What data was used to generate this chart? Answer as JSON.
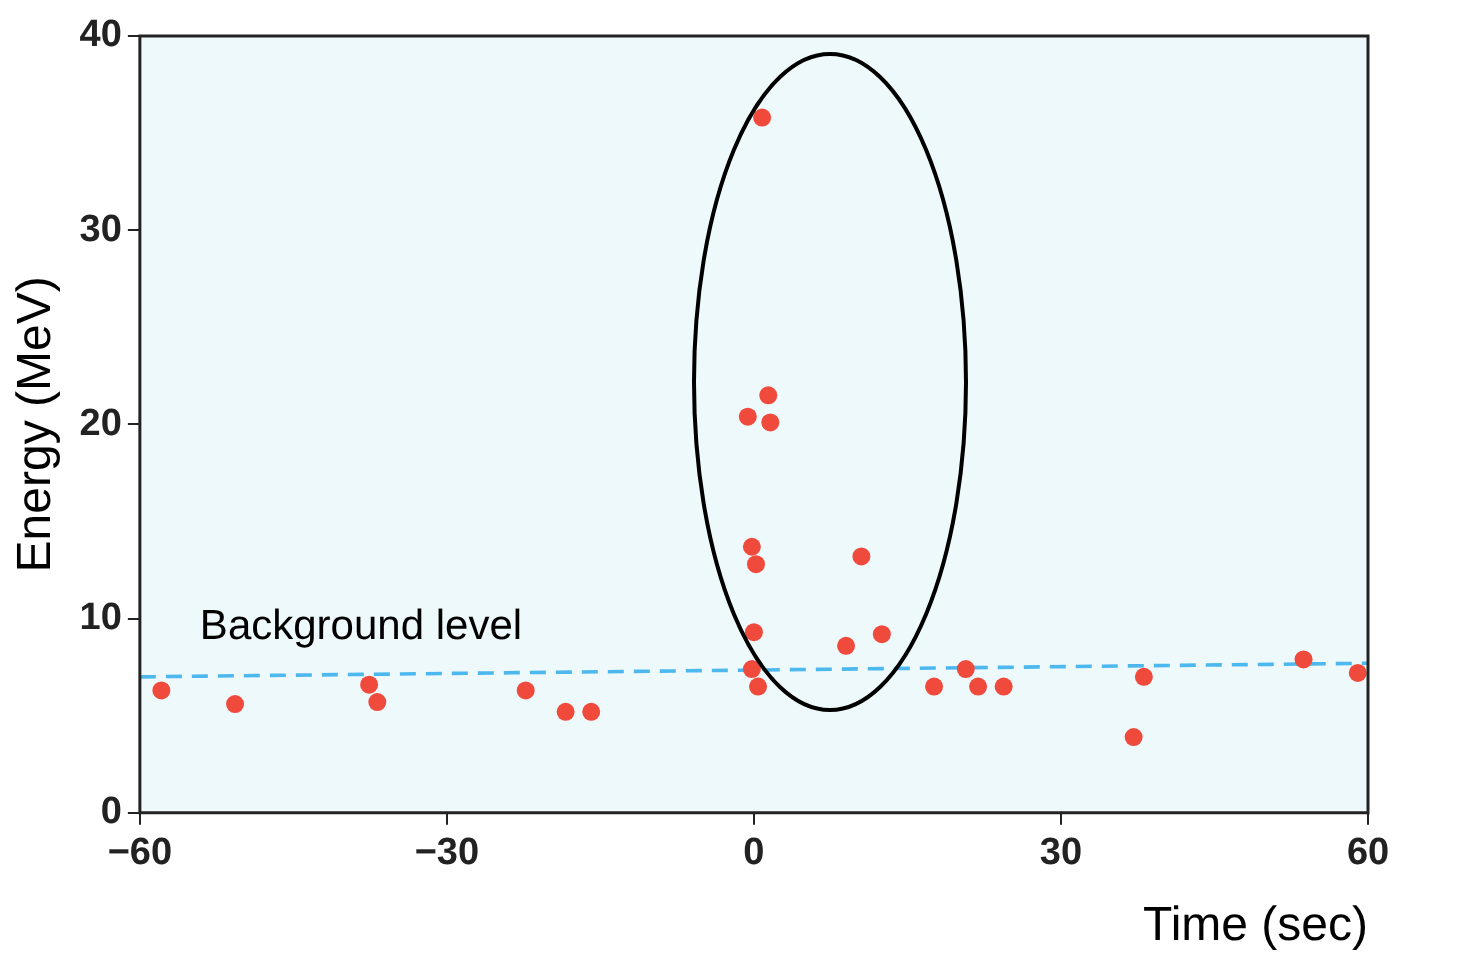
{
  "chart_data": {
    "type": "scatter",
    "xlabel": "Time (sec)",
    "ylabel": "Energy (MeV)",
    "xlim": [
      -60,
      60
    ],
    "xticks": [
      {
        "value": -60,
        "label": "−60"
      },
      {
        "value": -30,
        "label": "−30"
      },
      0,
      30,
      60
    ],
    "ylim": [
      0,
      40
    ],
    "yticks": [
      0,
      10,
      20,
      30,
      40
    ],
    "grid": false,
    "legend": false,
    "marker": "circle",
    "series": [
      {
        "color": "#f04a3c",
        "x": [
          -57.9,
          -50.7,
          -37.6,
          -36.8,
          -22.3,
          -18.4,
          -15.9,
          0.8,
          -0.6,
          1.4,
          1.6,
          -0.2,
          0.2,
          0,
          -0.2,
          0.4,
          9.0,
          10.5,
          12.5,
          17.6,
          20.7,
          21.9,
          24.4,
          37.1,
          38.1,
          53.7,
          59.0
        ],
        "values": [
          6.3,
          5.6,
          6.6,
          5.7,
          6.3,
          5.2,
          5.2,
          35.8,
          20.4,
          21.5,
          20.1,
          13.7,
          12.8,
          9.3,
          7.4,
          6.5,
          8.6,
          13.2,
          9.2,
          6.5,
          7.4,
          6.5,
          6.5,
          3.9,
          7.0,
          7.9,
          7.2
        ]
      },
      {
        "type": "line",
        "name": "Background level",
        "color": "#4db8ee",
        "line_style": "dashed",
        "marker": "none",
        "x": [
          -60,
          60
        ],
        "values": [
          7.0,
          7.7
        ]
      }
    ]
  }
}
